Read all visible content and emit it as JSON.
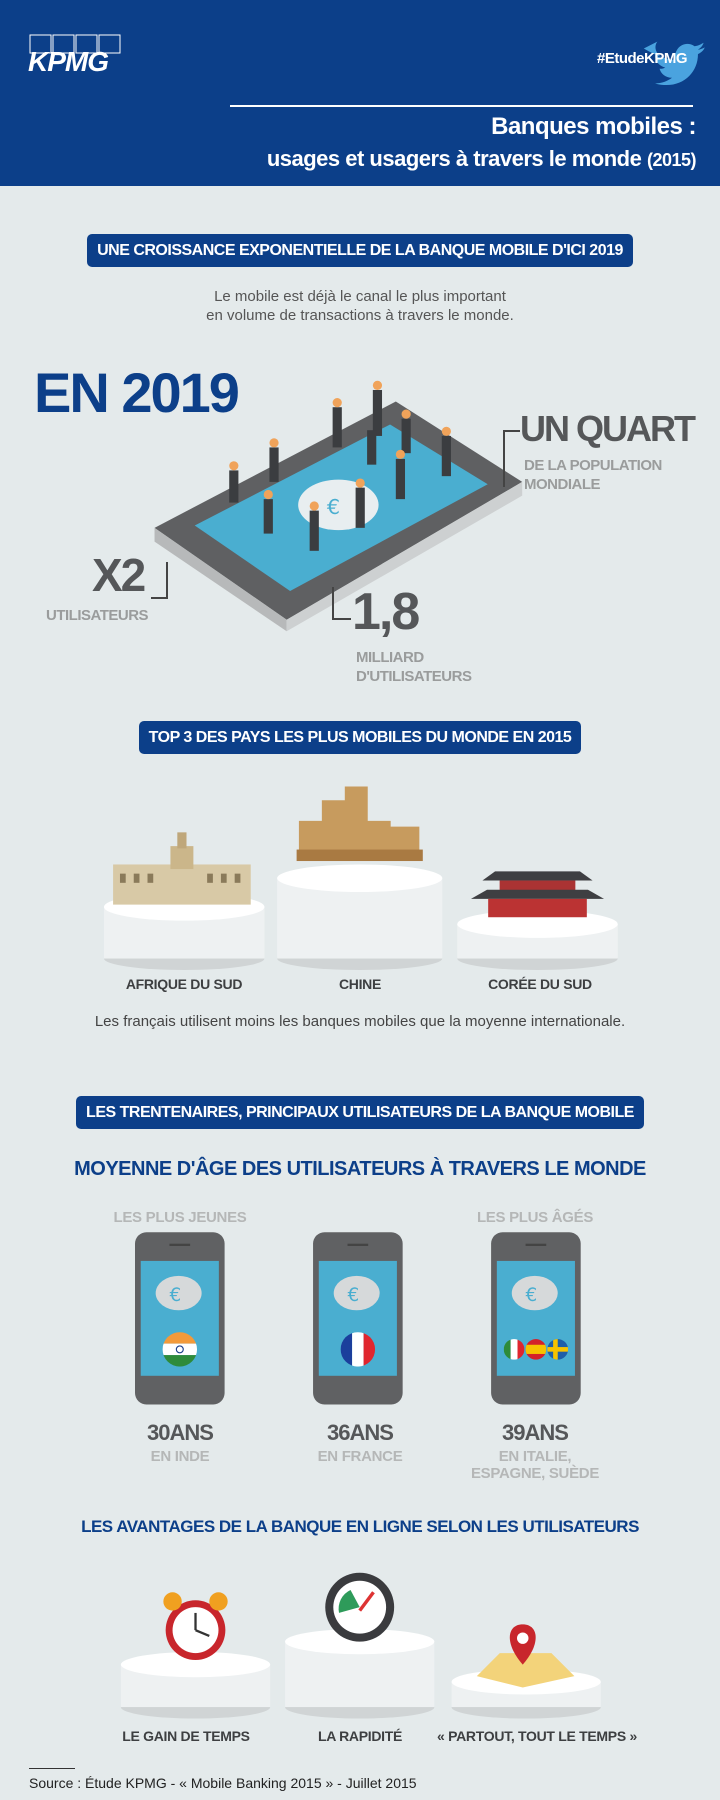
{
  "header": {
    "logo": "KPMG",
    "hashtag": "#EtudeKPMG",
    "icon": "twitter-bird-icon",
    "title_line1": "Banques mobiles :",
    "title_line2": "usages et usagers à travers le monde",
    "title_year": "(2015)"
  },
  "colors": {
    "brand_blue": "#0c3f89",
    "background": "#e4eaeb",
    "twitter": "#4aa3df",
    "screen": "#4aaed0"
  },
  "section1": {
    "banner": "UNE CROISSANCE EXPONENTIELLE DE LA BANQUE MOBILE D'ICI 2019",
    "text_line1": "Le mobile est déjà le canal le plus important",
    "text_line2": "en volume de transactions à travers le monde.",
    "year": "EN 2019",
    "quart": "UN QUART",
    "quart_sub1": "DE LA POPULATION",
    "quart_sub2": "MONDIALE",
    "x2": "X2",
    "x2_sub": "UTILISATEURS",
    "billion": "1,8",
    "billion_sub1": "MILLIARD",
    "billion_sub2": "D'UTILISATEURS"
  },
  "section2": {
    "banner": "TOP 3 DES PAYS LES PLUS MOBILES DU MONDE EN 2015",
    "countries": [
      "AFRIQUE DU SUD",
      "CHINE",
      "CORÉE DU SUD"
    ],
    "note": "Les français utilisent moins les banques mobiles que la moyenne internationale."
  },
  "section3": {
    "banner": "LES TRENTENAIRES, PRINCIPAUX UTILISATEURS DE LA BANQUE MOBILE",
    "subtitle": "MOYENNE D'ÂGE DES UTILISATEURS À TRAVERS LE MONDE",
    "youngest": "LES PLUS JEUNES",
    "oldest": "LES PLUS ÂGÉS",
    "ages": [
      {
        "age": "30ANS",
        "where": "EN INDE"
      },
      {
        "age": "36ANS",
        "where": "EN FRANCE"
      },
      {
        "age": "39ANS",
        "where": "EN ITALIE,",
        "where2": "ESPAGNE, SUÈDE"
      }
    ]
  },
  "section4": {
    "title": "LES AVANTAGES DE LA BANQUE EN LIGNE SELON LES UTILISATEURS",
    "items": [
      "LE GAIN DE TEMPS",
      "LA RAPIDITÉ",
      "« PARTOUT, TOUT LE TEMPS »"
    ]
  },
  "footer": {
    "source": "Source : Étude KPMG - « Mobile Banking 2015 » - Juillet 2015"
  }
}
